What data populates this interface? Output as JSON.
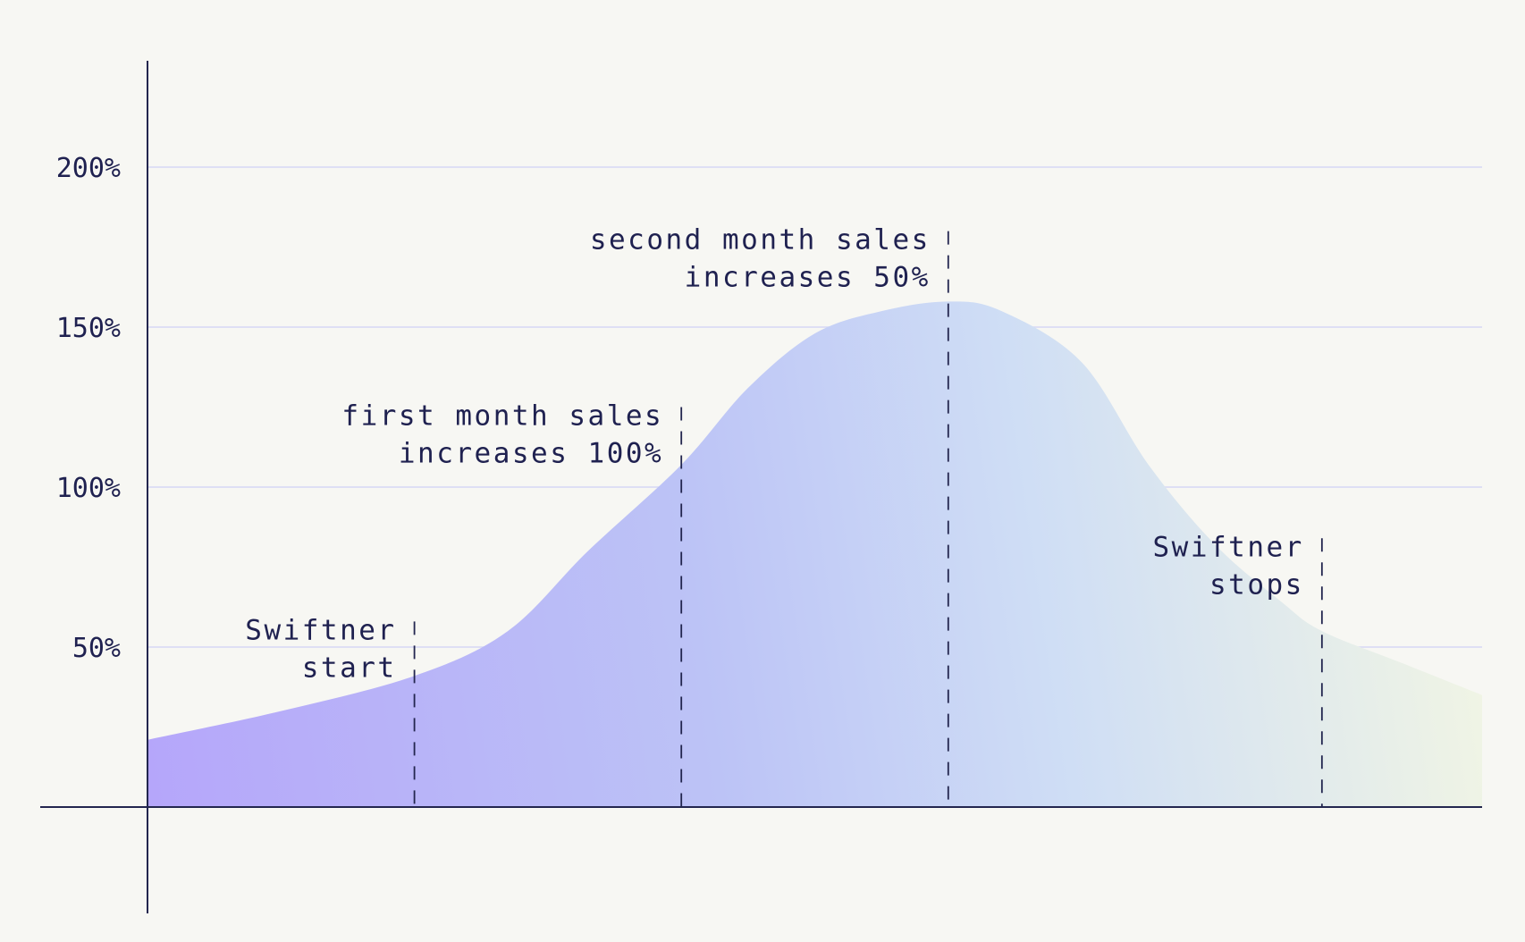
{
  "chart_data": {
    "type": "area",
    "title": "",
    "xlabel": "",
    "ylabel": "",
    "ylim": [
      0,
      200
    ],
    "xlim": [
      0,
      100
    ],
    "y_ticks": [
      {
        "value": 50,
        "label": "50%"
      },
      {
        "value": 100,
        "label": "100%"
      },
      {
        "value": 150,
        "label": "150%"
      },
      {
        "value": 200,
        "label": "200%"
      }
    ],
    "grid": true,
    "x": [
      0,
      10,
      20,
      27,
      33,
      40,
      45,
      50,
      55,
      60,
      64,
      70,
      75,
      80,
      85,
      88,
      94,
      100
    ],
    "y": [
      21,
      30,
      41,
      55,
      80,
      107,
      131,
      148,
      155,
      158,
      155,
      139,
      107,
      82,
      64,
      55,
      45,
      35
    ],
    "colors": {
      "fill_start": "#b5a6fa",
      "fill_mid": "#bcc3f6",
      "fill_light": "#cfdef5",
      "fill_end": "#f1f5e4",
      "axis": "#23264f",
      "grid": "#d6d7f5",
      "text": "#1f2150"
    },
    "annotations": [
      {
        "x": 20,
        "y_top": 58,
        "align": "right",
        "lines": [
          "Swiftner",
          "start"
        ]
      },
      {
        "x": 40,
        "y_top": 125,
        "align": "right",
        "lines": [
          "first month sales",
          "increases 100%"
        ]
      },
      {
        "x": 60,
        "y_top": 180,
        "align": "right",
        "lines": [
          "second month sales",
          "increases 50%"
        ]
      },
      {
        "x": 88,
        "y_top": 84,
        "align": "right",
        "lines": [
          "Swiftner",
          "stops"
        ]
      }
    ]
  }
}
